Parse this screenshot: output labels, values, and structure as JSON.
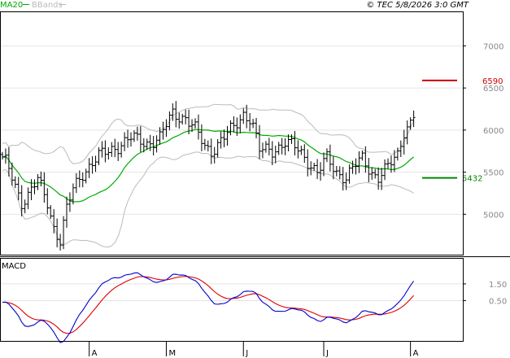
{
  "header": {
    "indicator_ma": "MA20",
    "indicator_bands": "BBands",
    "copyright": "© TEC 5/8/2026 3:0 GMT"
  },
  "macd_panel": {
    "label": "MACD"
  },
  "colors": {
    "price": "#000000",
    "ma": "#00aa00",
    "bands": "#bbbbbb",
    "macd_line": "#0000cc",
    "signal_line": "#dd0000",
    "resistance": "#cc0000",
    "support": "#008800",
    "grid": "#e4e4e4",
    "axis": "#000000"
  },
  "chart_data": [
    {
      "type": "bar",
      "subtype": "ohlc",
      "panel": "price",
      "yaxis_ticks": [
        50,
        55,
        60,
        65,
        70
      ],
      "yaxis_tick_labels": [
        "5000",
        "5500",
        "6000",
        "6500",
        "7000"
      ],
      "ylim": [
        45.2,
        74.0
      ],
      "xaxis_ticks": [
        {
          "label": "A",
          "index": 27
        },
        {
          "label": "M",
          "index": 51
        },
        {
          "label": "J",
          "index": 75
        },
        {
          "label": "J",
          "index": 100
        },
        {
          "label": "A",
          "index": 127
        }
      ],
      "close_first": 56.8,
      "close_last": 61.5,
      "levels": [
        {
          "name": "resistance",
          "value": 65.9,
          "label": "6590"
        },
        {
          "name": "support",
          "value": 54.32,
          "label": "5432"
        }
      ]
    },
    {
      "type": "line",
      "panel": "macd",
      "series": [
        {
          "key": "macd"
        },
        {
          "key": "signal"
        }
      ],
      "yaxis_ticks": [
        1.5,
        0.5
      ],
      "yaxis_tick_labels": [
        "1.50",
        "0.50"
      ],
      "ylim": [
        -1.9,
        3.0
      ]
    }
  ]
}
